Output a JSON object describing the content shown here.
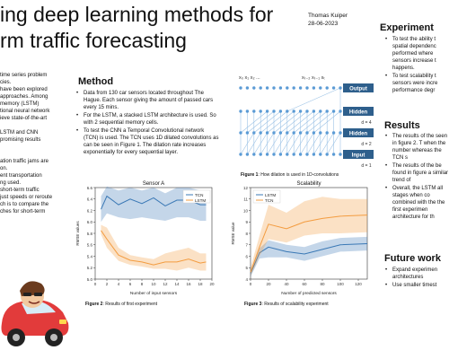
{
  "poster": {
    "title_line1": "ing deep learning methods for",
    "title_line2": "rm traffic forecasting",
    "author": "Thomas Kuiper",
    "date": "28-06-2023"
  },
  "left_column": {
    "lines": [
      "time series problem",
      "cies.",
      "have been explored",
      "approaches. Among",
      "memory (LSTM)",
      "tional neural network",
      "ieve state-of-the-art",
      "",
      "LSTM and CNN",
      "promising results",
      "",
      "",
      "ation traffic jams are",
      "on.",
      "ent transportation",
      "ng used.",
      "short-term traffic",
      "just speeds or reroute",
      "ch is to compare the",
      "ches for short-term"
    ]
  },
  "method": {
    "heading": "Method",
    "bullets": [
      "Data from 130 car sensors located throughout The Hague. Each sensor giving the amount of passed cars every 15 mins.",
      "For the LSTM, a stacked LSTM architecture is used. So with 2 sequential memory cells.",
      "To test the CNN a Temporal Convolutional network (TCN) is used. The TCN uses 1D dilated convolutions as can be seen in Figure 1. The dilation rate increases exponentially for every sequential layer."
    ]
  },
  "experiment": {
    "heading": "Experiment",
    "bullets": [
      "To test the ability t spatial dependenc performed where sensors increase t happens.",
      "To test scalability t sensors were incre performance degr"
    ]
  },
  "results": {
    "heading": "Results",
    "bullets": [
      "The results of the seen in figure 2. T when the number whereas the TCN s",
      "The results of the be found in figure a similar trend of",
      "Overall, the LSTM all stages when co combined with the the first experimen architecture for th"
    ]
  },
  "future_work": {
    "heading": "Future work",
    "bullets": [
      "Expand experimen architectures",
      "Use smaller timest"
    ]
  },
  "figure1": {
    "caption_bold": "Figure 1",
    "caption_rest": ": How dilation is used in 1D-convolutions",
    "x_top": "x₀   x₁   x₂  ...",
    "x_right": "xₜ₋₂  xₜ₋₁  xₜ",
    "layers": [
      {
        "label": "Output",
        "d": ""
      },
      {
        "label": "Hidden",
        "d": "d = 4"
      },
      {
        "label": "Hidden",
        "d": "d = 2"
      },
      {
        "label": "Input",
        "d": "d = 1"
      }
    ],
    "d_top": "d = 4",
    "colors": {
      "node": "#5b9bd5",
      "edge": "#9dc3e6",
      "label_bg": "#2e5f8c"
    }
  },
  "figure2": {
    "caption_bold": "Figure 2",
    "caption_rest": ": Results of first experiment"
  },
  "figure3": {
    "caption_bold": "Figure 3",
    "caption_rest": ": Results of scalability experiment"
  },
  "chart_data": [
    {
      "type": "line",
      "title": "Sensor A",
      "xlabel": "Number of input sensors",
      "ylabel": "RMSE values",
      "xlim": [
        0,
        20
      ],
      "ylim": [
        5.0,
        6.6
      ],
      "xticks": [
        0,
        2,
        4,
        6,
        8,
        10,
        12,
        14,
        16,
        18,
        20
      ],
      "yticks": [
        5.0,
        5.2,
        5.4,
        5.6,
        5.8,
        6.0,
        6.2,
        6.4,
        6.6
      ],
      "legend_position": "top-right",
      "series": [
        {
          "name": "TCN",
          "color": "#3a78b5",
          "x": [
            1,
            2,
            4,
            6,
            8,
            10,
            12,
            14,
            16,
            18,
            19
          ],
          "y": [
            6.22,
            6.45,
            6.3,
            6.4,
            6.32,
            6.42,
            6.28,
            6.38,
            6.38,
            6.3,
            6.3
          ],
          "band_low": [
            6.0,
            6.15,
            6.08,
            6.05,
            6.08,
            6.05,
            6.02,
            6.08,
            6.08,
            6.02,
            6.02
          ],
          "band_high": [
            6.45,
            6.62,
            6.55,
            6.6,
            6.55,
            6.6,
            6.5,
            6.6,
            6.6,
            6.55,
            6.55
          ]
        },
        {
          "name": "LSTM",
          "color": "#f39c40",
          "x": [
            1,
            2,
            4,
            6,
            8,
            10,
            12,
            14,
            16,
            18,
            19
          ],
          "y": [
            5.85,
            5.7,
            5.42,
            5.33,
            5.3,
            5.25,
            5.3,
            5.3,
            5.35,
            5.28,
            5.3
          ],
          "band_low": [
            5.78,
            5.55,
            5.32,
            5.25,
            5.22,
            5.18,
            5.18,
            5.15,
            5.2,
            5.15,
            5.15
          ],
          "band_high": [
            5.95,
            5.9,
            5.55,
            5.42,
            5.38,
            5.35,
            5.45,
            5.5,
            5.55,
            5.45,
            5.45
          ]
        }
      ]
    },
    {
      "type": "line",
      "title": "Scalability",
      "xlabel": "Number of predicted sensors",
      "ylabel": "RMSE value",
      "xlim": [
        0,
        130
      ],
      "ylim": [
        4,
        12
      ],
      "xticks": [
        0,
        20,
        40,
        60,
        80,
        100,
        120
      ],
      "yticks": [
        4,
        5,
        6,
        7,
        8,
        9,
        10,
        11,
        12
      ],
      "legend_position": "top-left",
      "series": [
        {
          "name": "LSTM",
          "color": "#3a78b5",
          "x": [
            0,
            10,
            20,
            40,
            60,
            80,
            100,
            130
          ],
          "y": [
            4.5,
            6.3,
            6.8,
            6.4,
            6.2,
            6.6,
            7.0,
            7.1
          ],
          "band_low": [
            4.2,
            5.8,
            5.9,
            5.9,
            5.6,
            6.0,
            6.4,
            6.5
          ],
          "band_high": [
            4.8,
            6.7,
            7.4,
            7.0,
            6.8,
            7.3,
            7.6,
            7.7
          ]
        },
        {
          "name": "TCN",
          "color": "#f39c40",
          "x": [
            0,
            10,
            20,
            40,
            60,
            80,
            100,
            130
          ],
          "y": [
            4.6,
            6.8,
            8.8,
            8.4,
            9.0,
            9.3,
            9.5,
            9.6
          ],
          "band_low": [
            4.3,
            6.0,
            7.5,
            7.2,
            7.8,
            8.0,
            8.0,
            8.1
          ],
          "band_high": [
            5.0,
            7.8,
            10.5,
            9.8,
            10.8,
            11.2,
            11.0,
            11.0
          ]
        }
      ]
    }
  ]
}
